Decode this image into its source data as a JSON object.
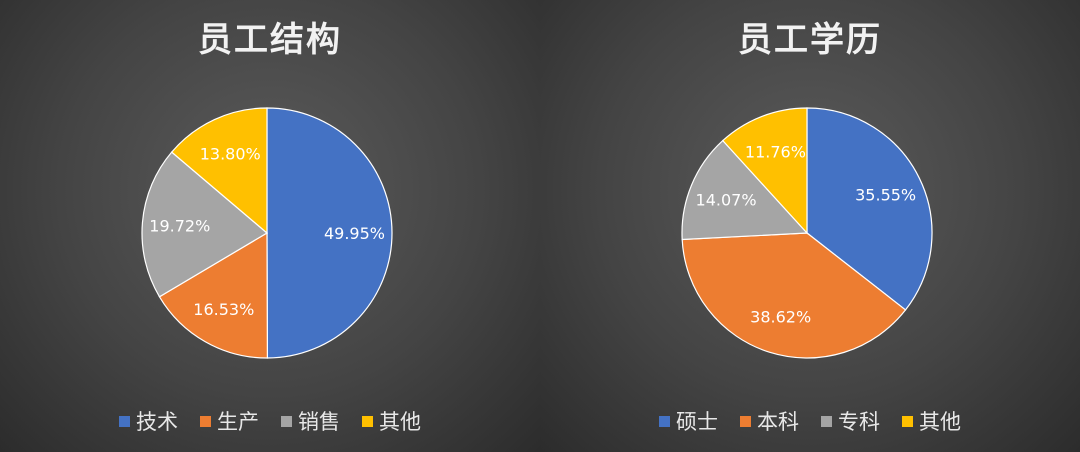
{
  "chart_data": [
    {
      "type": "pie",
      "title": "员工结构",
      "categories": [
        "技术",
        "生产",
        "销售",
        "其他"
      ],
      "values": [
        49.95,
        16.53,
        19.72,
        13.8
      ],
      "labels": [
        "49.95%",
        "16.53%",
        "19.72%",
        "13.80%"
      ],
      "colors": [
        "#4472C4",
        "#ED7D31",
        "#A5A5A5",
        "#FFC000"
      ],
      "legend": "bottom"
    },
    {
      "type": "pie",
      "title": "员工学历",
      "categories": [
        "硕士",
        "本科",
        "专科",
        "其他"
      ],
      "values": [
        35.55,
        38.62,
        14.07,
        11.76
      ],
      "labels": [
        "35.55%",
        "38.62%",
        "14.07%",
        "11.76%"
      ],
      "colors": [
        "#4472C4",
        "#ED7D31",
        "#A5A5A5",
        "#FFC000"
      ],
      "legend": "bottom"
    }
  ]
}
